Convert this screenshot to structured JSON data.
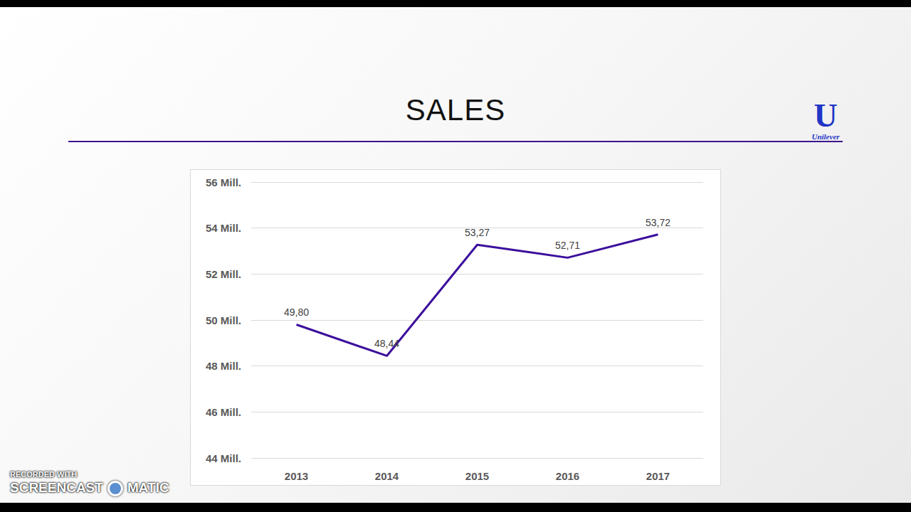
{
  "chart_data": {
    "type": "line",
    "title": "SALES",
    "categories": [
      "2013",
      "2014",
      "2015",
      "2016",
      "2017"
    ],
    "values": [
      49.8,
      48.44,
      53.27,
      52.71,
      53.72
    ],
    "value_labels": [
      "49,80",
      "48,44",
      "53,27",
      "52,71",
      "53,72"
    ],
    "color": "#3c0f9c",
    "ylim": [
      44,
      56
    ],
    "yticks": [
      {
        "value": 44,
        "label": "44 Mill."
      },
      {
        "value": 46,
        "label": "46 Mill."
      },
      {
        "value": 48,
        "label": "48 Mill."
      },
      {
        "value": 50,
        "label": "50 Mill."
      },
      {
        "value": 52,
        "label": "52 Mill."
      },
      {
        "value": 54,
        "label": "54 Mill."
      },
      {
        "value": 56,
        "label": "56 Mill."
      }
    ],
    "grid": true,
    "data_labels": true
  },
  "logo": "Unilever",
  "watermark": [
    "RECORDED WITH",
    "SCREENCAST",
    "MATIC"
  ]
}
